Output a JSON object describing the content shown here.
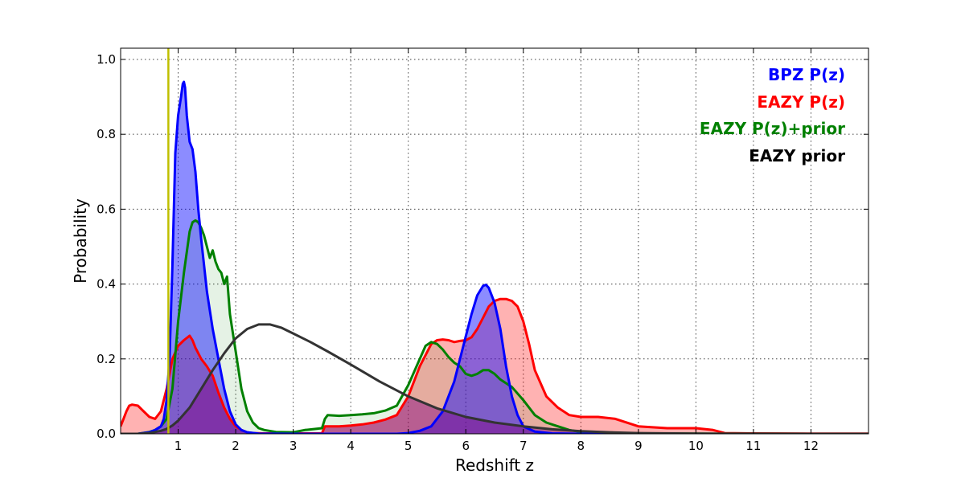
{
  "chart_data": {
    "type": "area",
    "title": "",
    "xlabel": "Redshift z",
    "ylabel": "Probability",
    "xlim": [
      0,
      13
    ],
    "ylim": [
      0,
      1.03
    ],
    "xticks": [
      1,
      2,
      3,
      4,
      5,
      6,
      7,
      8,
      9,
      10,
      11,
      12
    ],
    "xtick_labels": [
      "1",
      "2",
      "3",
      "4",
      "5",
      "6",
      "7",
      "8",
      "9",
      "10",
      "11",
      "12"
    ],
    "yticks": [
      0.0,
      0.2,
      0.4,
      0.6,
      0.8,
      1.0
    ],
    "ytick_labels": [
      "0.0",
      "0.2",
      "0.4",
      "0.6",
      "0.8",
      "1.0"
    ],
    "grid": true,
    "legend_position": "top-right",
    "vline": {
      "x": 0.83,
      "color": "#bfbf00"
    },
    "legend": [
      {
        "label": "BPZ P(z)",
        "color": "#0000ff"
      },
      {
        "label": "EAZY P(z)",
        "color": "#ff0000"
      },
      {
        "label": "EAZY P(z)+prior",
        "color": "#008000"
      },
      {
        "label": "EAZY prior",
        "color": "#000000"
      }
    ],
    "series": [
      {
        "name": "EAZY P(z)",
        "color": "#ff0000",
        "fill": "#ff0000",
        "fill_opacity": 0.3,
        "x": [
          0.0,
          0.05,
          0.1,
          0.15,
          0.2,
          0.3,
          0.4,
          0.5,
          0.6,
          0.7,
          0.8,
          0.9,
          1.0,
          1.1,
          1.2,
          1.25,
          1.3,
          1.4,
          1.5,
          1.6,
          1.7,
          1.8,
          1.9,
          2.0,
          2.1,
          2.2,
          2.3,
          2.5,
          2.8,
          3.0,
          3.2,
          3.5,
          3.55,
          3.6,
          3.8,
          4.0,
          4.2,
          4.4,
          4.6,
          4.8,
          5.0,
          5.2,
          5.4,
          5.5,
          5.6,
          5.7,
          5.8,
          5.9,
          6.0,
          6.1,
          6.2,
          6.3,
          6.4,
          6.5,
          6.6,
          6.7,
          6.8,
          6.9,
          7.0,
          7.1,
          7.2,
          7.4,
          7.6,
          7.8,
          8.0,
          8.3,
          8.6,
          9.0,
          9.5,
          10.0,
          10.3,
          10.5,
          11.0,
          12.0,
          13.0
        ],
        "y": [
          0.02,
          0.04,
          0.06,
          0.075,
          0.078,
          0.075,
          0.06,
          0.045,
          0.04,
          0.06,
          0.12,
          0.2,
          0.235,
          0.25,
          0.262,
          0.25,
          0.23,
          0.2,
          0.18,
          0.155,
          0.11,
          0.07,
          0.04,
          0.02,
          0.01,
          0.004,
          0.002,
          0.001,
          0.001,
          0.001,
          0.001,
          0.001,
          0.02,
          0.02,
          0.02,
          0.022,
          0.025,
          0.03,
          0.038,
          0.05,
          0.1,
          0.18,
          0.24,
          0.25,
          0.252,
          0.25,
          0.245,
          0.248,
          0.25,
          0.258,
          0.28,
          0.31,
          0.34,
          0.355,
          0.36,
          0.36,
          0.355,
          0.34,
          0.3,
          0.24,
          0.17,
          0.1,
          0.07,
          0.05,
          0.045,
          0.045,
          0.04,
          0.02,
          0.015,
          0.015,
          0.01,
          0.002,
          0.001,
          0.0005,
          0.0005
        ]
      },
      {
        "name": "EAZY P(z)+prior",
        "color": "#008000",
        "fill": "#008000",
        "fill_opacity": 0.1,
        "x": [
          0.0,
          0.3,
          0.5,
          0.6,
          0.7,
          0.8,
          0.9,
          1.0,
          1.1,
          1.2,
          1.25,
          1.3,
          1.35,
          1.4,
          1.45,
          1.5,
          1.55,
          1.6,
          1.65,
          1.7,
          1.75,
          1.8,
          1.85,
          1.9,
          2.0,
          2.1,
          2.2,
          2.3,
          2.4,
          2.5,
          2.7,
          3.0,
          3.2,
          3.5,
          3.55,
          3.6,
          3.8,
          4.0,
          4.2,
          4.4,
          4.6,
          4.8,
          5.0,
          5.2,
          5.3,
          5.4,
          5.5,
          5.6,
          5.7,
          5.8,
          5.9,
          6.0,
          6.1,
          6.2,
          6.3,
          6.4,
          6.5,
          6.6,
          6.8,
          7.0,
          7.2,
          7.4,
          7.6,
          7.8,
          8.0,
          8.5,
          9.0,
          10.0,
          13.0
        ],
        "y": [
          0.0,
          0.0,
          0.005,
          0.01,
          0.02,
          0.04,
          0.12,
          0.3,
          0.43,
          0.54,
          0.565,
          0.57,
          0.565,
          0.55,
          0.53,
          0.5,
          0.47,
          0.49,
          0.46,
          0.44,
          0.43,
          0.4,
          0.42,
          0.32,
          0.22,
          0.12,
          0.06,
          0.03,
          0.015,
          0.01,
          0.005,
          0.004,
          0.01,
          0.015,
          0.04,
          0.05,
          0.048,
          0.05,
          0.052,
          0.055,
          0.062,
          0.075,
          0.13,
          0.2,
          0.235,
          0.245,
          0.24,
          0.225,
          0.205,
          0.19,
          0.18,
          0.16,
          0.155,
          0.16,
          0.17,
          0.17,
          0.16,
          0.145,
          0.125,
          0.09,
          0.05,
          0.03,
          0.02,
          0.01,
          0.005,
          0.002,
          0.001,
          0.0005,
          0.0
        ]
      },
      {
        "name": "BPZ P(z)",
        "color": "#0000ff",
        "fill": "#0000ff",
        "fill_opacity": 0.45,
        "x": [
          0.0,
          0.3,
          0.5,
          0.6,
          0.7,
          0.75,
          0.8,
          0.85,
          0.9,
          0.95,
          1.0,
          1.05,
          1.08,
          1.1,
          1.12,
          1.15,
          1.2,
          1.25,
          1.3,
          1.35,
          1.4,
          1.5,
          1.6,
          1.7,
          1.8,
          1.9,
          2.0,
          2.1,
          2.2,
          2.4,
          3.0,
          4.0,
          4.8,
          5.0,
          5.2,
          5.4,
          5.6,
          5.8,
          6.0,
          6.1,
          6.2,
          6.3,
          6.35,
          6.4,
          6.5,
          6.6,
          6.7,
          6.8,
          6.9,
          7.0,
          7.2,
          7.5,
          8.0,
          13.0
        ],
        "y": [
          0.0,
          0.0,
          0.004,
          0.01,
          0.02,
          0.04,
          0.09,
          0.2,
          0.45,
          0.75,
          0.85,
          0.9,
          0.935,
          0.94,
          0.925,
          0.85,
          0.78,
          0.76,
          0.7,
          0.6,
          0.52,
          0.38,
          0.28,
          0.2,
          0.12,
          0.06,
          0.025,
          0.01,
          0.004,
          0.0005,
          0.0,
          0.0,
          0.0,
          0.002,
          0.008,
          0.02,
          0.06,
          0.14,
          0.26,
          0.32,
          0.37,
          0.395,
          0.398,
          0.39,
          0.35,
          0.28,
          0.18,
          0.1,
          0.05,
          0.02,
          0.006,
          0.001,
          0.0,
          0.0
        ]
      },
      {
        "name": "EAZY prior",
        "color": "#333333",
        "fill": "#333333",
        "fill_opacity": 0.0,
        "x": [
          0.0,
          0.3,
          0.5,
          0.7,
          0.8,
          0.9,
          1.0,
          1.2,
          1.4,
          1.6,
          1.8,
          2.0,
          2.2,
          2.4,
          2.6,
          2.8,
          3.0,
          3.3,
          3.6,
          4.0,
          4.5,
          5.0,
          5.5,
          6.0,
          6.5,
          7.0,
          7.5,
          8.0,
          8.5,
          9.0,
          10.0,
          11.0,
          12.0,
          13.0
        ],
        "y": [
          0.0,
          0.0,
          0.002,
          0.008,
          0.013,
          0.022,
          0.035,
          0.07,
          0.12,
          0.17,
          0.215,
          0.255,
          0.28,
          0.292,
          0.292,
          0.283,
          0.268,
          0.245,
          0.22,
          0.185,
          0.14,
          0.1,
          0.068,
          0.045,
          0.03,
          0.02,
          0.012,
          0.007,
          0.004,
          0.002,
          0.0005,
          0.0002,
          0.0,
          0.0
        ]
      }
    ],
    "overlay": {
      "name": "EAZY prior fill",
      "color": "#800080",
      "opacity": 0.45
    }
  }
}
